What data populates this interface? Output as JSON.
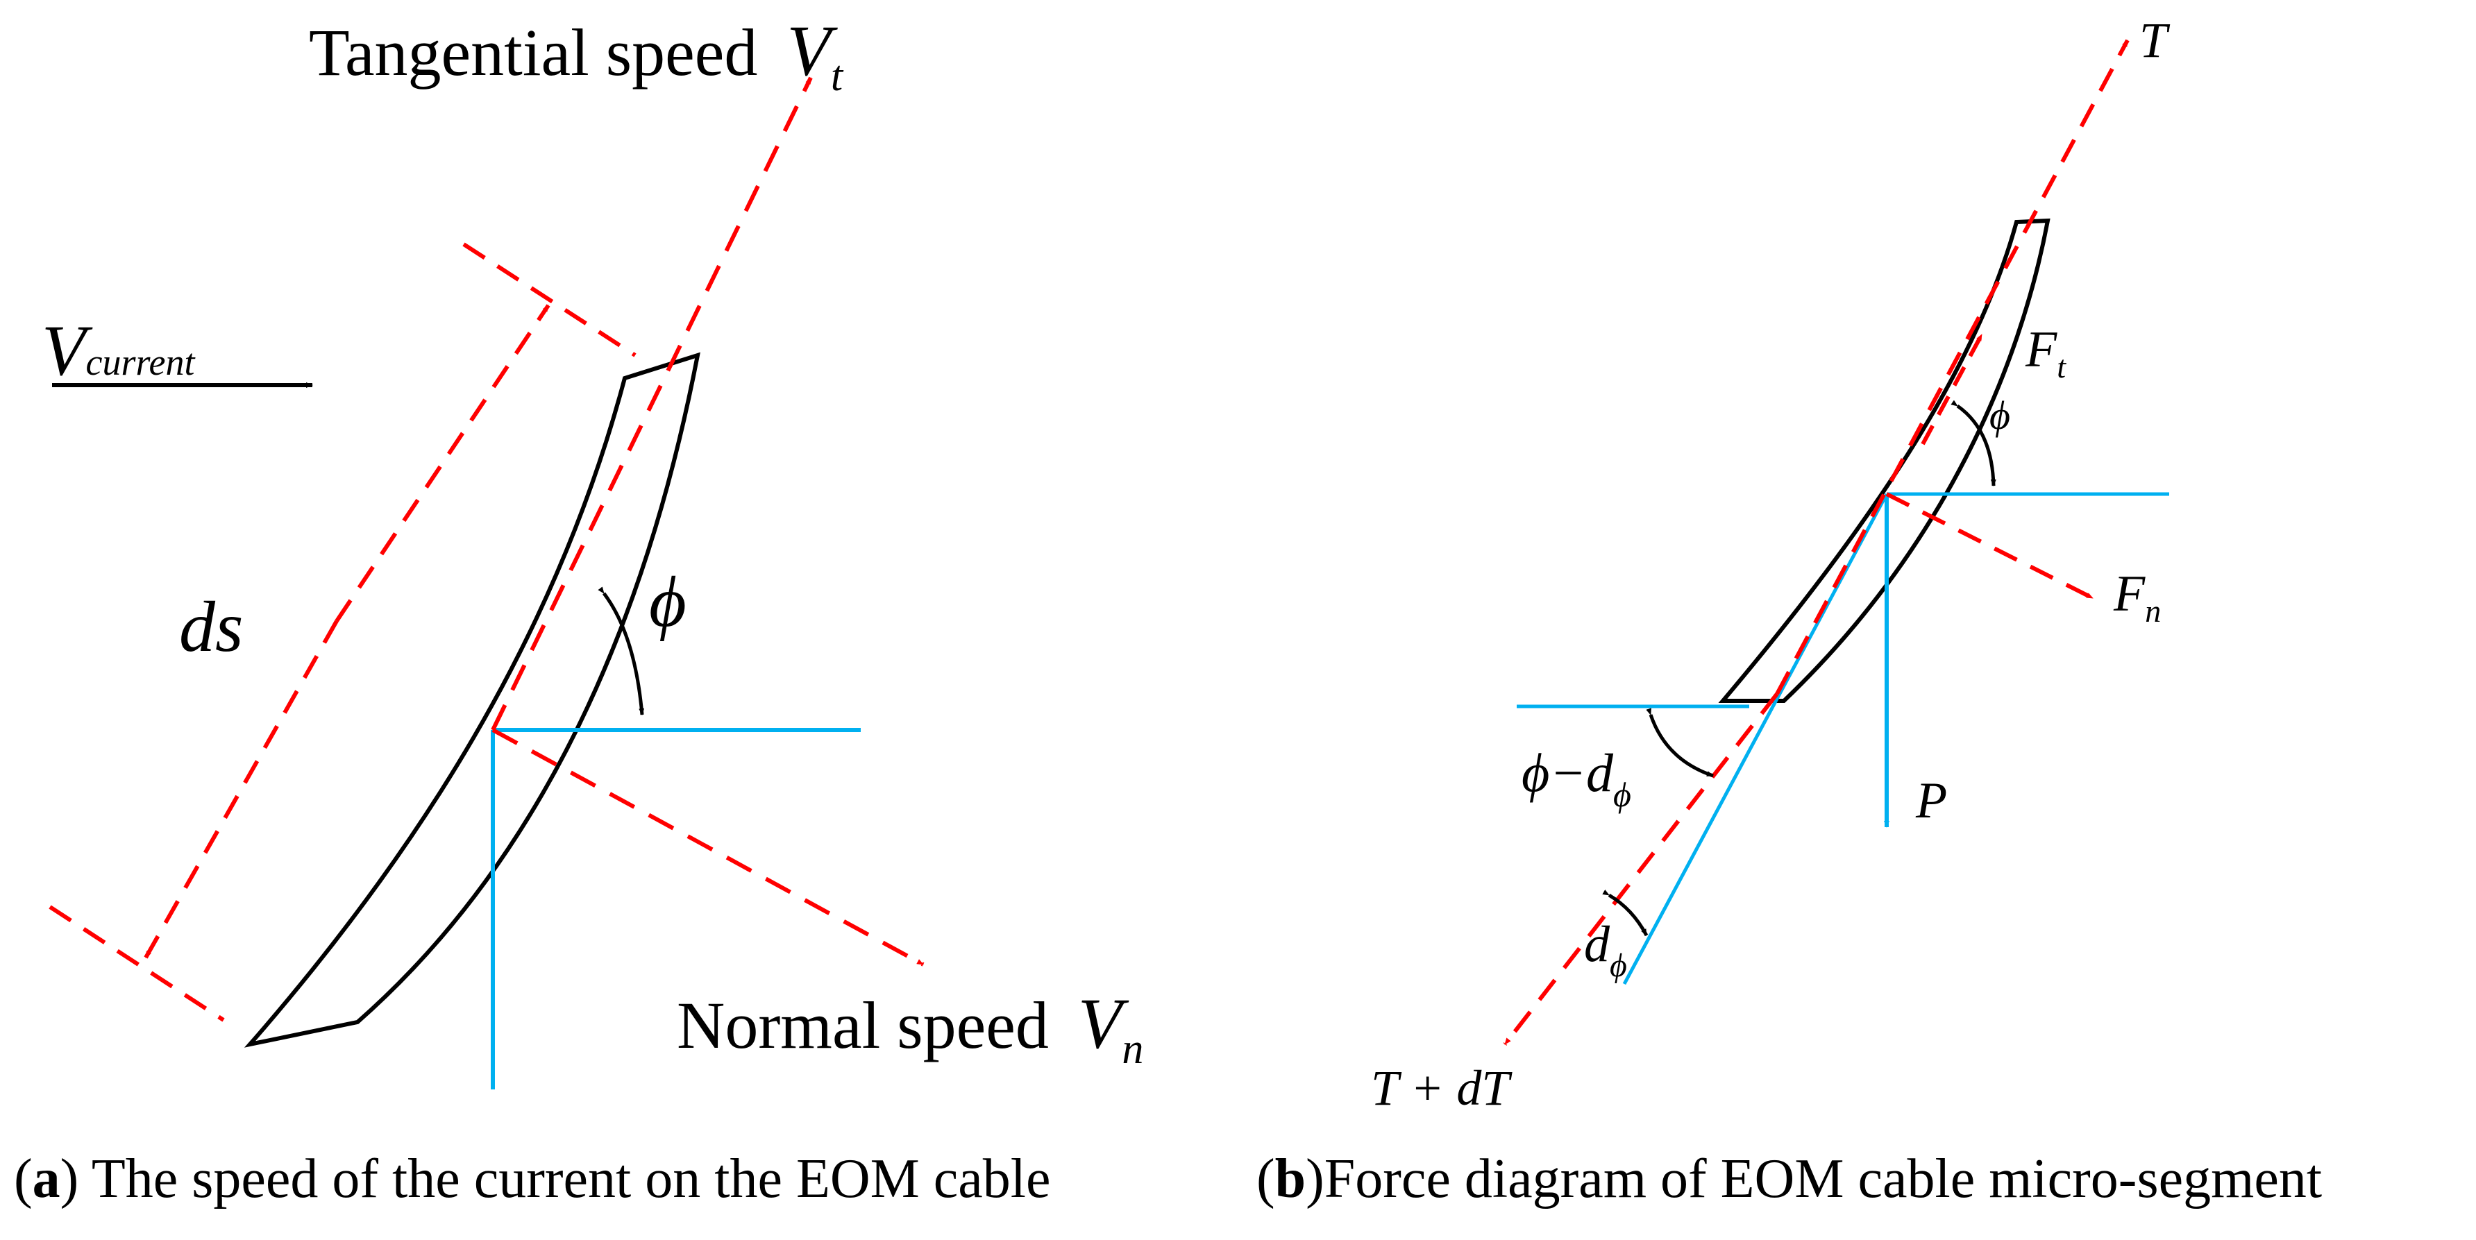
{
  "colors": {
    "red_dashed": "#ff0000",
    "blue": "#00b0f0",
    "black": "#000000"
  },
  "panel_a": {
    "tangential_label": "Tangential speed",
    "tangential_symbol": "V",
    "tangential_sub": "t",
    "current_symbol": "V",
    "current_sub": "current",
    "ds_label": "ds",
    "phi_label": "ϕ",
    "normal_label": "Normal speed",
    "normal_symbol": "V",
    "normal_sub": "n",
    "caption_bold": "a",
    "caption_text": " The speed of the current on the EOM cable"
  },
  "panel_b": {
    "T_label": "T",
    "Ft_symbol": "F",
    "Ft_sub": "t",
    "phi_label": "ϕ",
    "Fn_symbol": "F",
    "Fn_sub": "n",
    "phi_minus_main": "ϕ−d",
    "phi_minus_sub": "ϕ",
    "P_label": "P",
    "dphi_main": "d",
    "dphi_sub": "ϕ",
    "TdT_label": "T + dT",
    "caption_bold": "b",
    "caption_text": "Force diagram of EOM cable micro-segment"
  }
}
